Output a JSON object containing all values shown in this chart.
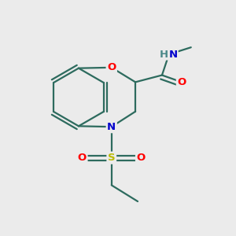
{
  "bg_color": "#ebebeb",
  "bond_color": "#2d6b5e",
  "bond_width": 1.6,
  "atom_colors": {
    "O": "#ff0000",
    "N": "#0000cc",
    "S": "#bbbb00",
    "H": "#4a8888",
    "C": "#2d6b5e"
  },
  "font_size": 9.5,
  "fig_size": [
    3.0,
    3.0
  ],
  "dpi": 100
}
